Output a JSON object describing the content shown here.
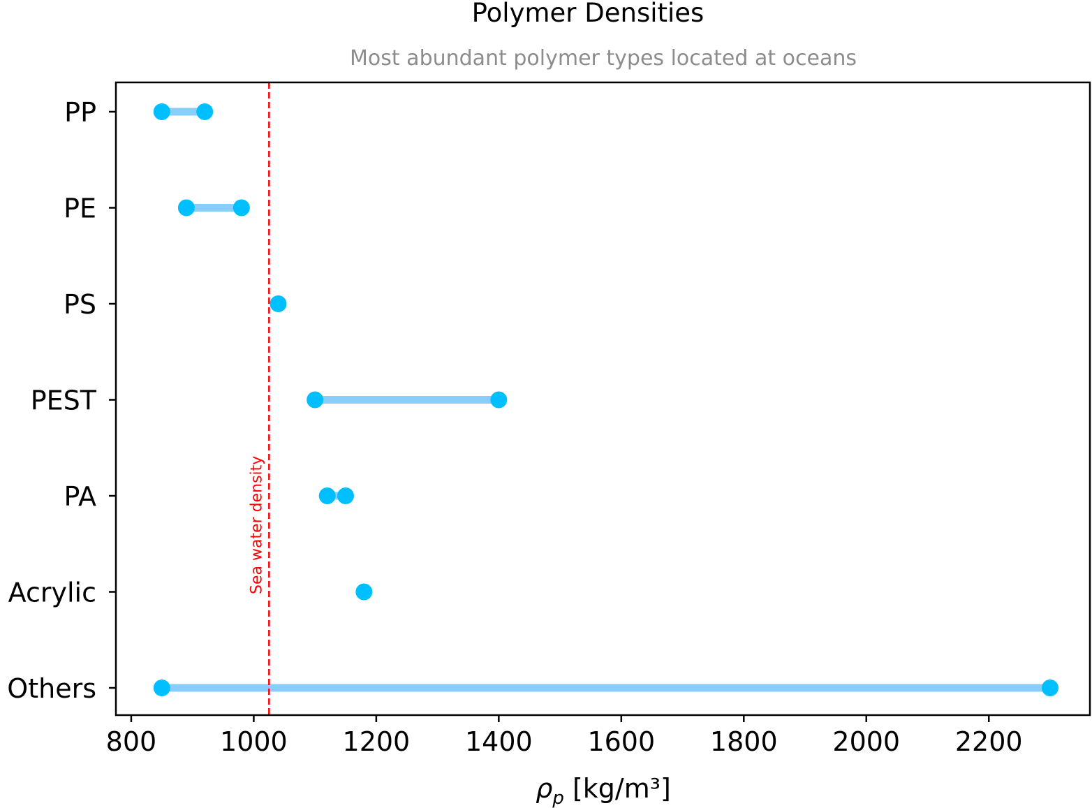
{
  "chart_data": {
    "type": "dumbbell",
    "title": "Polymer Densities",
    "subtitle": "Most abundant polymer types located at oceans",
    "xlabel_symbol": "ρ",
    "xlabel_subscript": "p",
    "xlabel_unit": "[kg/m³]",
    "xlim": [
      775,
      2365
    ],
    "xticks": [
      800,
      1000,
      1200,
      1400,
      1600,
      1800,
      2000,
      2200
    ],
    "grid": false,
    "categories": [
      "PP",
      "PE",
      "PS",
      "PEST",
      "PA",
      "Acrylic",
      "Others"
    ],
    "ranges": [
      {
        "label": "PP",
        "min": 850,
        "max": 920
      },
      {
        "label": "PE",
        "min": 890,
        "max": 980
      },
      {
        "label": "PS",
        "min": 1040,
        "max": 1040
      },
      {
        "label": "PEST",
        "min": 1100,
        "max": 1400
      },
      {
        "label": "PA",
        "min": 1120,
        "max": 1150
      },
      {
        "label": "Acrylic",
        "min": 1180,
        "max": 1180
      },
      {
        "label": "Others",
        "min": 850,
        "max": 2300
      }
    ],
    "reference_line": {
      "label": "Sea water density",
      "value": 1025,
      "color": "#ff0000"
    },
    "colors": {
      "point": "#00bfff",
      "bar": "#87cefa",
      "subtitle": "#8c8c8c"
    }
  }
}
